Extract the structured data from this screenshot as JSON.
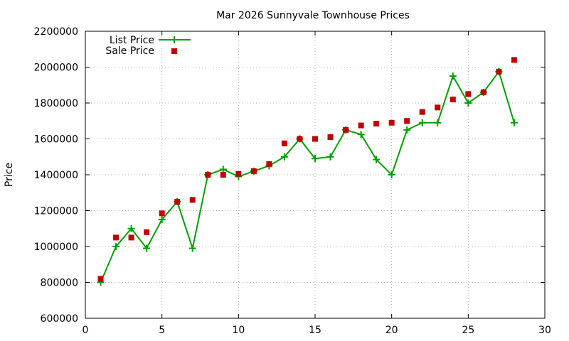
{
  "chart_data": {
    "type": "line",
    "title": "Mar 2026 Sunnyvale Townhouse Prices",
    "xlabel": "",
    "ylabel": "Price",
    "xlim": [
      0,
      30
    ],
    "ylim": [
      600000,
      2200000
    ],
    "xticks": [
      0,
      5,
      10,
      15,
      20,
      25,
      30
    ],
    "yticks": [
      600000,
      800000,
      1000000,
      1200000,
      1400000,
      1600000,
      1800000,
      2000000,
      2200000
    ],
    "grid": true,
    "legend": "top-left",
    "series": [
      {
        "name": "List Price",
        "style": "linespoints",
        "color": "#00a000",
        "x": [
          1,
          2,
          3,
          4,
          5,
          6,
          7,
          8,
          9,
          10,
          11,
          12,
          13,
          14,
          15,
          16,
          17,
          18,
          19,
          20,
          21,
          22,
          23,
          24,
          25,
          26,
          27,
          28
        ],
        "y": [
          800000,
          1000000,
          1100000,
          990000,
          1150000,
          1250000,
          990000,
          1400000,
          1430000,
          1390000,
          1420000,
          1450000,
          1500000,
          1600000,
          1490000,
          1500000,
          1650000,
          1625000,
          1485000,
          1400000,
          1650000,
          1690000,
          1690000,
          1950000,
          1800000,
          1860000,
          1975000,
          1690000
        ]
      },
      {
        "name": "Sale Price",
        "style": "points",
        "color": "#c00000",
        "x": [
          1,
          2,
          3,
          4,
          5,
          6,
          7,
          8,
          9,
          10,
          11,
          12,
          13,
          14,
          15,
          16,
          17,
          18,
          19,
          20,
          21,
          22,
          23,
          24,
          25,
          26,
          27,
          28
        ],
        "y": [
          820000,
          1050000,
          1050000,
          1080000,
          1185000,
          1250000,
          1260000,
          1400000,
          1400000,
          1405000,
          1420000,
          1460000,
          1575000,
          1600000,
          1600000,
          1610000,
          1650000,
          1675000,
          1685000,
          1690000,
          1700000,
          1750000,
          1775000,
          1820000,
          1850000,
          1860000,
          1975000,
          2040000
        ]
      }
    ]
  }
}
